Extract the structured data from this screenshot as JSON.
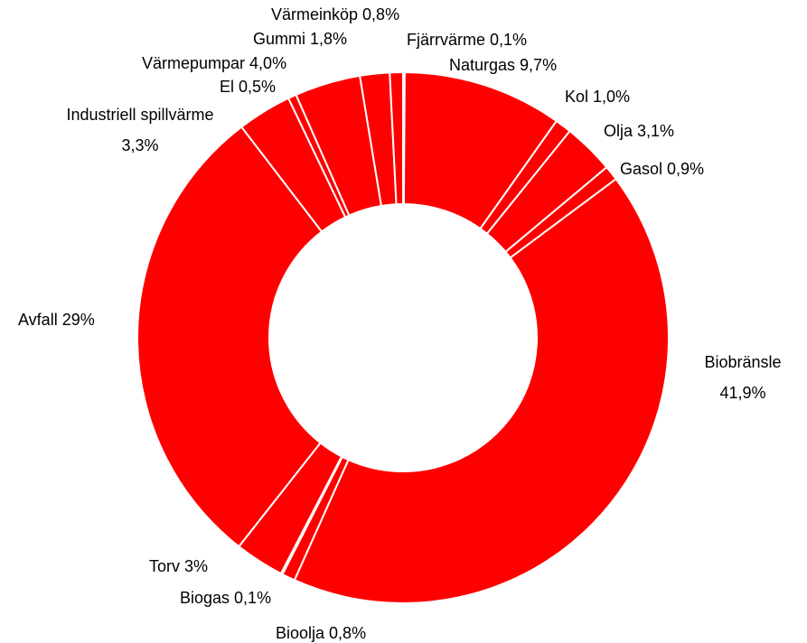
{
  "chart_data": {
    "type": "donut",
    "categories": [
      "Fjärrvärme",
      "Naturgas",
      "Kol",
      "Olja",
      "Gasol",
      "Biobränsle",
      "Bioolja",
      "Biogas",
      "Torv",
      "Avfall",
      "Industriell spillvärme",
      "El",
      "Värmepumpar",
      "Gummi",
      "Värmeinköp"
    ],
    "values": [
      0.1,
      9.7,
      1.0,
      3.1,
      0.9,
      41.9,
      0.8,
      0.1,
      3,
      29,
      3.3,
      0.5,
      4.0,
      1.8,
      0.8
    ],
    "value_labels": [
      "0,1%",
      "9,7%",
      "1,0%",
      "3,1%",
      "0,9%",
      "41,9%",
      "0,8%",
      "0,1%",
      "3%",
      "29%",
      "3,3%",
      "0,5%",
      "4,0%",
      "1,8%",
      "0,8%"
    ],
    "color": "#ff0000"
  }
}
